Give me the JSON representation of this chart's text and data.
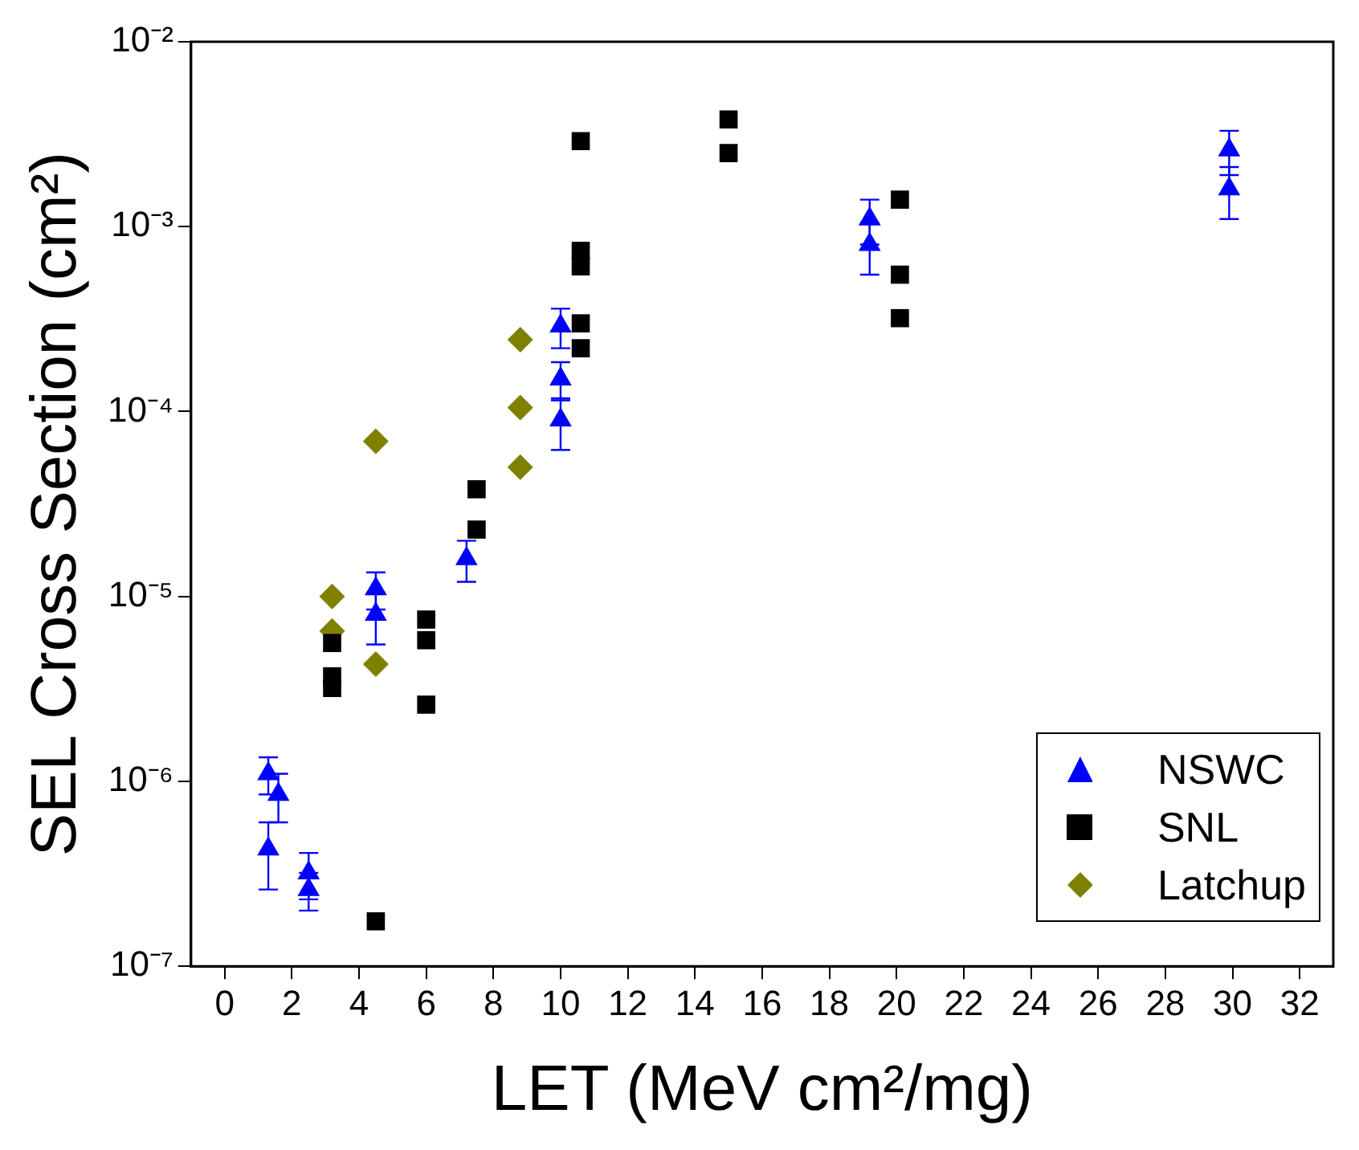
{
  "chart_data": {
    "type": "scatter",
    "xlabel": "LET (MeV cm²/mg)",
    "ylabel": "SEL Cross Section (cm²)",
    "log": "y",
    "xlim": [
      -1,
      33
    ],
    "xticks": [
      0,
      2,
      4,
      6,
      8,
      10,
      12,
      14,
      16,
      18,
      20,
      22,
      24,
      26,
      28,
      30,
      32
    ],
    "ylim": [
      1e-07,
      0.01
    ],
    "yticks": [
      {
        "value": 1e-07,
        "label": "10⁻⁷"
      },
      {
        "value": 1e-06,
        "label": "10⁻⁶"
      },
      {
        "value": 1e-05,
        "label": "10⁻⁵"
      },
      {
        "value": 0.0001,
        "label": "10⁻⁴"
      },
      {
        "value": 0.001,
        "label": "10⁻³"
      },
      {
        "value": 0.01,
        "label": "10⁻²"
      }
    ],
    "grid": false,
    "legend": "bottom right",
    "series": [
      {
        "name": "NSWC",
        "color": "#0000ff",
        "marker": "triangle",
        "x": [
          1.3,
          1.6,
          1.3,
          2.5,
          2.5,
          4.5,
          4.5,
          7.2,
          10,
          10,
          10,
          19.2,
          19.2,
          29.9,
          29.9
        ],
        "values": [
          1.1e-06,
          8.5e-07,
          4.3e-07,
          3.2e-07,
          2.6e-07,
          1.1e-05,
          8e-06,
          1.6e-05,
          0.00029,
          0.00015,
          9e-05,
          0.0011,
          0.0008,
          0.0026,
          0.0016
        ],
        "errors": [
          2.5e-07,
          2.5e-07,
          1.7e-07,
          9e-08,
          6e-08,
          2.5e-06,
          2.5e-06,
          4e-06,
          7e-05,
          3.5e-05,
          2.8e-05,
          0.0003,
          0.00025,
          0.0007,
          0.0005
        ]
      },
      {
        "name": "SNL",
        "color": "#000000",
        "marker": "square",
        "x": [
          3.2,
          3.2,
          3.2,
          4.5,
          6,
          6,
          6,
          7.5,
          7.5,
          10.6,
          10.6,
          10.6,
          10.6,
          10.6,
          15,
          15,
          20.1,
          20.1,
          20.1
        ],
        "values": [
          5.6e-06,
          3.7e-06,
          3.2e-06,
          1.75e-07,
          7.5e-06,
          5.8e-06,
          2.6e-06,
          3.8e-05,
          2.3e-05,
          0.0029,
          0.00074,
          0.00061,
          0.0003,
          0.00022,
          0.0038,
          0.0025,
          0.0014,
          0.00055,
          0.00032
        ]
      },
      {
        "name": "Latchup",
        "color": "#808000",
        "marker": "diamond",
        "x": [
          3.2,
          3.2,
          4.5,
          4.5,
          8.8,
          8.8,
          8.8
        ],
        "values": [
          1e-05,
          6.5e-06,
          6.9e-05,
          4.3e-06,
          0.000245,
          0.000105,
          5e-05
        ]
      }
    ]
  }
}
